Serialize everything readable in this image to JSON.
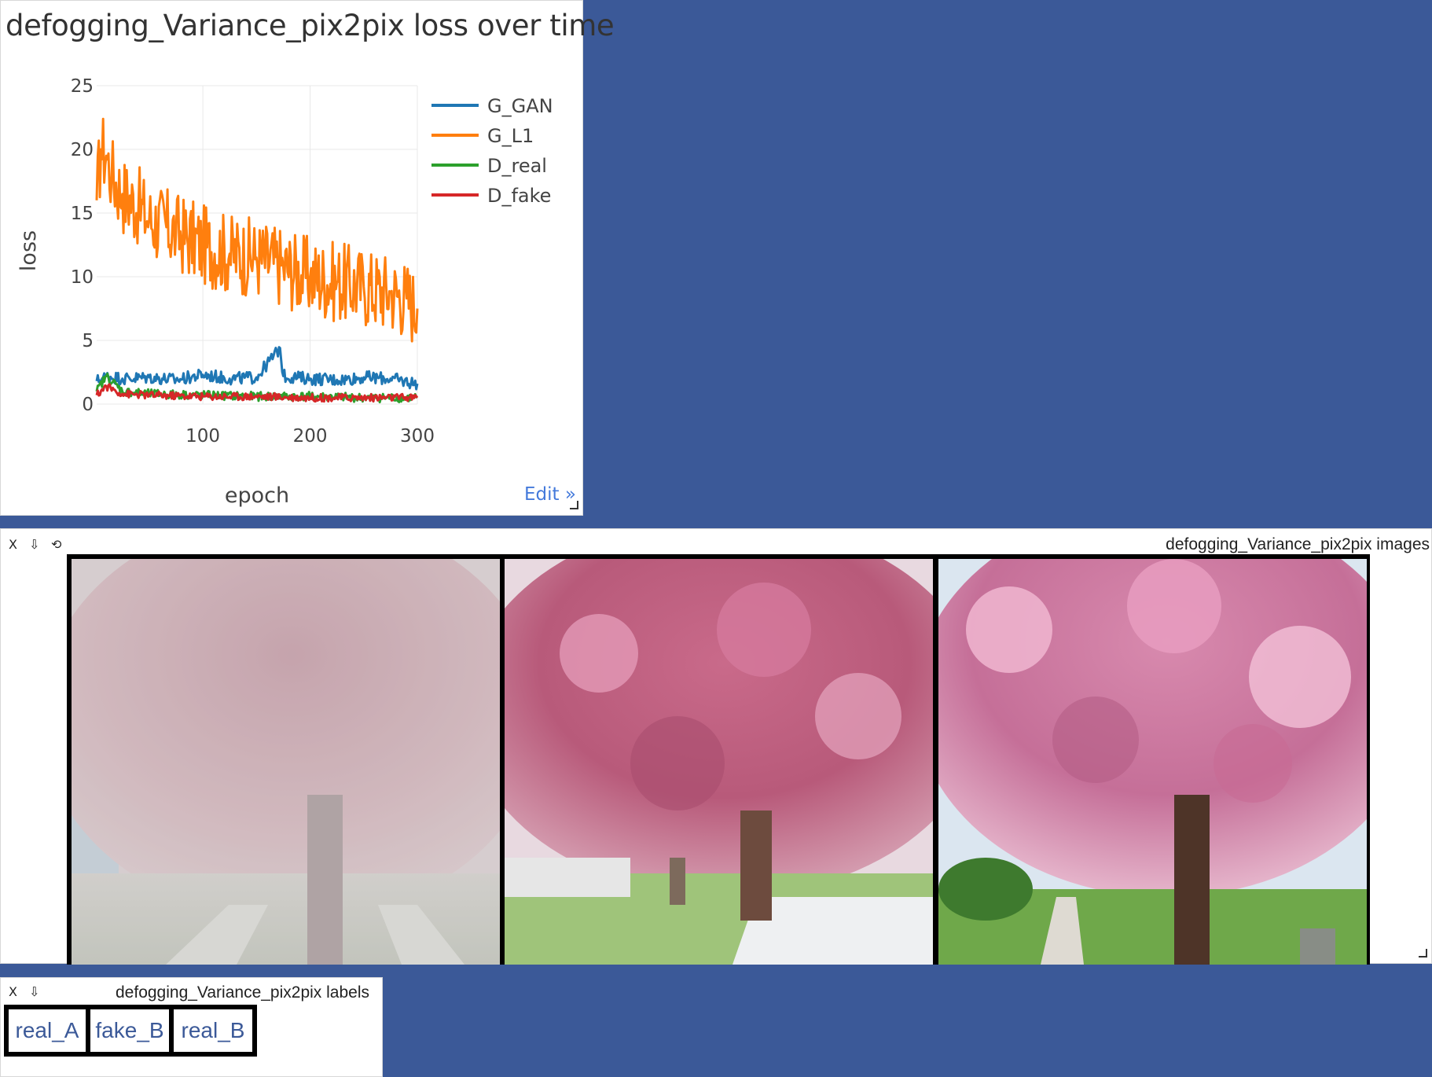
{
  "chart_pane": {
    "title": "defogging_Variance_pix2pix loss over time",
    "edit_label": "Edit »"
  },
  "chart_data": {
    "type": "line",
    "title": "defogging_Variance_pix2pix loss over time",
    "xlabel": "epoch",
    "ylabel": "loss",
    "xlim": [
      1,
      300
    ],
    "ylim": [
      0,
      25
    ],
    "x_ticks": [
      100,
      200,
      300
    ],
    "y_ticks": [
      0,
      5,
      10,
      15,
      20,
      25
    ],
    "grid": true,
    "legend_position": "top-right",
    "series": [
      {
        "name": "G_GAN",
        "color": "#1f77b4",
        "x": [
          1,
          10,
          25,
          50,
          75,
          100,
          125,
          150,
          172,
          175,
          200,
          225,
          250,
          275,
          300
        ],
        "values": [
          1.8,
          2.2,
          2.0,
          2.1,
          1.9,
          2.3,
          2.0,
          2.1,
          4.4,
          2.2,
          2.0,
          1.9,
          2.1,
          2.0,
          1.6
        ]
      },
      {
        "name": "G_L1",
        "color": "#ff7f0e",
        "x": [
          1,
          5,
          10,
          15,
          25,
          40,
          50,
          75,
          100,
          125,
          150,
          175,
          200,
          225,
          250,
          275,
          290,
          300
        ],
        "values": [
          16.0,
          20.0,
          19.5,
          18.0,
          16.5,
          15.5,
          14.5,
          13.5,
          12.5,
          11.8,
          11.5,
          10.8,
          10.0,
          9.6,
          9.2,
          8.8,
          8.3,
          7.5
        ]
      },
      {
        "name": "D_real",
        "color": "#2ca02c",
        "x": [
          1,
          10,
          25,
          50,
          100,
          150,
          200,
          250,
          300
        ],
        "values": [
          1.0,
          2.2,
          1.0,
          0.8,
          0.7,
          0.6,
          0.6,
          0.5,
          0.5
        ]
      },
      {
        "name": "D_fake",
        "color": "#d62728",
        "x": [
          1,
          10,
          25,
          50,
          100,
          150,
          200,
          250,
          300
        ],
        "values": [
          0.7,
          1.4,
          0.8,
          0.7,
          0.6,
          0.6,
          0.5,
          0.5,
          0.5
        ]
      }
    ]
  },
  "images_pane": {
    "close_label": "X",
    "download_label": "⇩",
    "reset_label": "⟲",
    "title": "defogging_Variance_pix2pix images",
    "images": [
      "real_A",
      "fake_B",
      "real_B"
    ]
  },
  "labels_pane": {
    "close_label": "X",
    "download_label": "⇩",
    "title": "defogging_Variance_pix2pix labels",
    "labels": [
      "real_A",
      "fake_B",
      "real_B"
    ]
  },
  "colors": {
    "background": "#3b5998",
    "link": "#447adb",
    "label_text": "#3b5998"
  }
}
